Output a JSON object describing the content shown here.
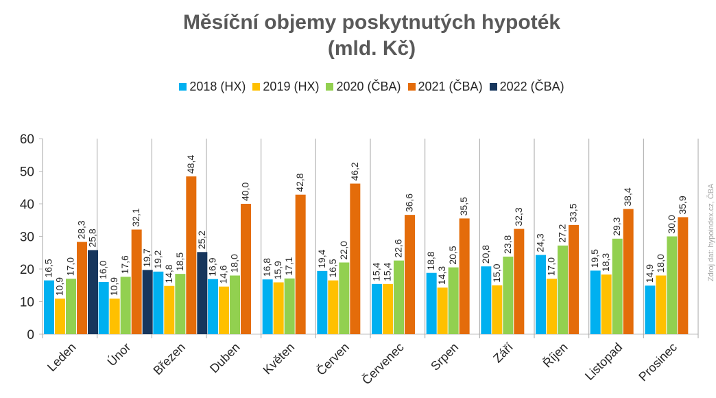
{
  "chart_data": {
    "type": "bar",
    "title": [
      "Měsíční objemy poskytnutých hypoték",
      "(mld. Kč)"
    ],
    "categories": [
      "Leden",
      "Únor",
      "Březen",
      "Duben",
      "Květen",
      "Červen",
      "Červenec",
      "Srpen",
      "Září",
      "Říjen",
      "Listopad",
      "Prosinec"
    ],
    "series": [
      {
        "name": "2018 (HX)",
        "color": "#00B0F0",
        "values": [
          16.5,
          16.0,
          19.2,
          16.9,
          16.8,
          19.4,
          15.4,
          18.8,
          20.8,
          24.3,
          19.5,
          14.9
        ]
      },
      {
        "name": "2019 (HX)",
        "color": "#FFC000",
        "values": [
          10.9,
          10.9,
          14.8,
          14.6,
          15.9,
          16.5,
          15.4,
          14.3,
          15.0,
          17.0,
          18.3,
          18.0
        ]
      },
      {
        "name": "2020 (ČBA)",
        "color": "#92D050",
        "values": [
          17.0,
          17.6,
          18.5,
          18.0,
          17.1,
          22.0,
          22.6,
          20.5,
          23.8,
          27.2,
          29.3,
          30.0
        ]
      },
      {
        "name": "2021 (ČBA)",
        "color": "#E46C0A",
        "values": [
          28.3,
          32.1,
          48.4,
          40.0,
          42.8,
          46.2,
          36.6,
          35.5,
          32.3,
          33.5,
          38.4,
          35.9
        ]
      },
      {
        "name": "2022 (ČBA)",
        "color": "#17365D",
        "values": [
          25.8,
          19.7,
          25.2,
          null,
          null,
          null,
          null,
          null,
          null,
          null,
          null,
          null
        ]
      }
    ],
    "ylim": [
      0,
      60
    ],
    "yticks": [
      "0",
      "10",
      "20",
      "30",
      "40",
      "50",
      "60"
    ],
    "grid": false,
    "legend_position": "top",
    "xlabel": "",
    "ylabel": ""
  },
  "source_note": "Zdroj dat: hypoindex.cz, ČBA"
}
